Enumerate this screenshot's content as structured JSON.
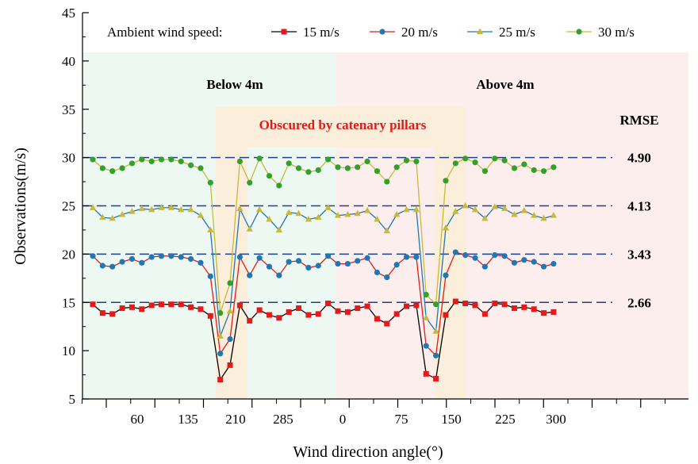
{
  "chart_data": {
    "type": "line",
    "xlabel": "Wind direction angle(°)",
    "ylabel": "Observations(m/s)",
    "ylim": [
      5,
      45
    ],
    "yticks": [
      5,
      10,
      15,
      20,
      25,
      30,
      35,
      40,
      45
    ],
    "xticklabels": [
      "60",
      "135",
      "210",
      "285",
      "0",
      "75",
      "150",
      "225",
      "300"
    ],
    "legend": {
      "title": "Ambient wind speed:",
      "entries": [
        "15 m/s",
        "20 m/s",
        "25 m/s",
        "30 m/s"
      ],
      "position": "top"
    },
    "regions": {
      "below_label": "Below 4m",
      "above_label": "Above 4m",
      "obscured_label": "Obscured by catenary pillars"
    },
    "rmse_title": "RMSE",
    "rmse": [
      "2.66",
      "3.43",
      "4.13",
      "4.90"
    ],
    "reference_lines": [
      15,
      20,
      25,
      30
    ],
    "series": [
      {
        "name": "15 m/s",
        "line_color": "#000000",
        "marker_color": "#e31a1c",
        "marker": "square",
        "values": [
          14.8,
          13.9,
          13.8,
          14.4,
          14.5,
          14.3,
          14.7,
          14.8,
          14.8,
          14.8,
          14.5,
          14.3,
          13.6,
          7.0,
          8.5,
          14.7,
          13.1,
          14.2,
          13.7,
          13.4,
          14.0,
          14.4,
          13.7,
          13.8,
          14.9,
          14.1,
          14.0,
          14.4,
          14.6,
          13.3,
          12.8,
          13.8,
          14.6,
          14.7,
          7.6,
          7.1,
          13.7,
          15.1,
          14.9,
          14.7,
          13.8,
          14.9,
          14.8,
          14.4,
          14.5,
          14.3,
          13.9,
          14.0
        ]
      },
      {
        "name": "20 m/s",
        "line_color": "#e31a1c",
        "marker_color": "#1f78b4",
        "marker": "circle",
        "values": [
          19.8,
          18.8,
          18.7,
          19.2,
          19.5,
          19.1,
          19.7,
          19.8,
          19.8,
          19.7,
          19.5,
          19.1,
          17.7,
          9.7,
          11.2,
          19.7,
          17.8,
          19.6,
          18.7,
          17.8,
          19.2,
          19.3,
          18.6,
          18.8,
          19.8,
          19.0,
          19.0,
          19.3,
          19.6,
          18.1,
          17.6,
          18.9,
          19.7,
          19.7,
          10.5,
          9.5,
          17.8,
          20.2,
          19.9,
          19.6,
          18.7,
          19.9,
          19.8,
          19.1,
          19.4,
          19.2,
          18.7,
          19.0
        ]
      },
      {
        "name": "25 m/s",
        "line_color": "#1f78b4",
        "marker_color": "#c8b93a",
        "marker": "triangle",
        "values": [
          24.8,
          23.8,
          23.7,
          24.1,
          24.4,
          24.7,
          24.6,
          24.8,
          24.8,
          24.6,
          24.6,
          24.0,
          22.5,
          11.5,
          14.1,
          24.7,
          22.6,
          24.6,
          23.6,
          22.5,
          24.3,
          24.2,
          23.6,
          23.8,
          24.8,
          24.0,
          24.1,
          24.2,
          24.5,
          23.6,
          22.4,
          24.1,
          24.6,
          24.6,
          13.4,
          12.0,
          22.7,
          24.4,
          25.0,
          24.6,
          23.7,
          24.9,
          24.7,
          24.1,
          24.5,
          24.0,
          23.7,
          24.0
        ]
      },
      {
        "name": "30 m/s",
        "line_color": "#c8b93a",
        "marker_color": "#33a02c",
        "marker": "circle",
        "values": [
          29.8,
          28.9,
          28.6,
          28.9,
          29.4,
          29.8,
          29.6,
          29.8,
          29.8,
          29.6,
          29.2,
          28.9,
          27.4,
          13.9,
          17.0,
          29.6,
          27.4,
          29.9,
          28.1,
          27.1,
          29.4,
          28.9,
          28.5,
          28.7,
          29.8,
          29.0,
          28.9,
          29.0,
          29.6,
          28.6,
          27.5,
          29.0,
          29.7,
          29.6,
          15.8,
          14.8,
          27.6,
          29.4,
          29.9,
          29.5,
          28.6,
          29.9,
          29.7,
          28.9,
          29.3,
          28.7,
          28.6,
          29.0
        ]
      }
    ]
  }
}
